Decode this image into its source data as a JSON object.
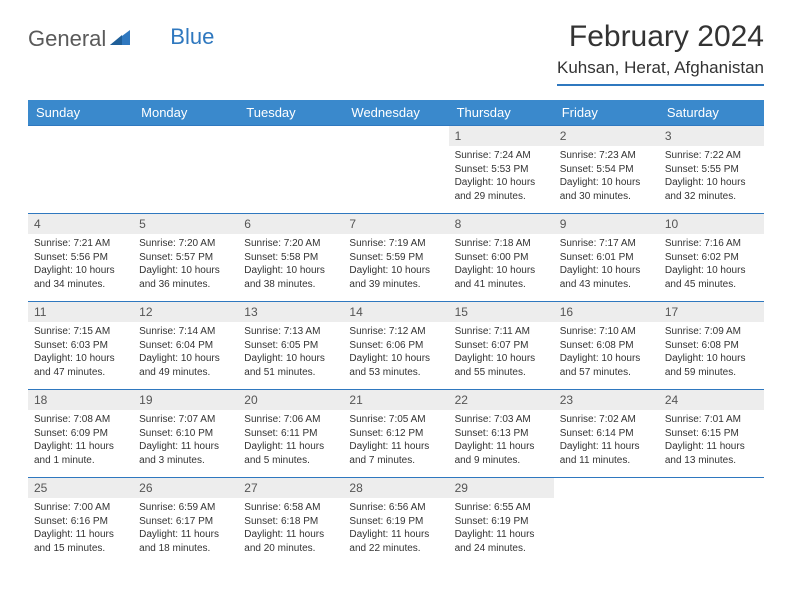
{
  "logo": {
    "word1": "General",
    "word2": "Blue"
  },
  "title": "February 2024",
  "location": "Kuhsan, Herat, Afghanistan",
  "colors": {
    "header_bg": "#3a89cc",
    "rule": "#2f78bf",
    "daynum_bg": "#ededed",
    "page_bg": "#ffffff",
    "text": "#333333"
  },
  "day_headers": [
    "Sunday",
    "Monday",
    "Tuesday",
    "Wednesday",
    "Thursday",
    "Friday",
    "Saturday"
  ],
  "weeks": [
    [
      {
        "n": "",
        "sunrise": "",
        "sunset": "",
        "daylight": ""
      },
      {
        "n": "",
        "sunrise": "",
        "sunset": "",
        "daylight": ""
      },
      {
        "n": "",
        "sunrise": "",
        "sunset": "",
        "daylight": ""
      },
      {
        "n": "",
        "sunrise": "",
        "sunset": "",
        "daylight": ""
      },
      {
        "n": "1",
        "sunrise": "Sunrise: 7:24 AM",
        "sunset": "Sunset: 5:53 PM",
        "daylight": "Daylight: 10 hours and 29 minutes."
      },
      {
        "n": "2",
        "sunrise": "Sunrise: 7:23 AM",
        "sunset": "Sunset: 5:54 PM",
        "daylight": "Daylight: 10 hours and 30 minutes."
      },
      {
        "n": "3",
        "sunrise": "Sunrise: 7:22 AM",
        "sunset": "Sunset: 5:55 PM",
        "daylight": "Daylight: 10 hours and 32 minutes."
      }
    ],
    [
      {
        "n": "4",
        "sunrise": "Sunrise: 7:21 AM",
        "sunset": "Sunset: 5:56 PM",
        "daylight": "Daylight: 10 hours and 34 minutes."
      },
      {
        "n": "5",
        "sunrise": "Sunrise: 7:20 AM",
        "sunset": "Sunset: 5:57 PM",
        "daylight": "Daylight: 10 hours and 36 minutes."
      },
      {
        "n": "6",
        "sunrise": "Sunrise: 7:20 AM",
        "sunset": "Sunset: 5:58 PM",
        "daylight": "Daylight: 10 hours and 38 minutes."
      },
      {
        "n": "7",
        "sunrise": "Sunrise: 7:19 AM",
        "sunset": "Sunset: 5:59 PM",
        "daylight": "Daylight: 10 hours and 39 minutes."
      },
      {
        "n": "8",
        "sunrise": "Sunrise: 7:18 AM",
        "sunset": "Sunset: 6:00 PM",
        "daylight": "Daylight: 10 hours and 41 minutes."
      },
      {
        "n": "9",
        "sunrise": "Sunrise: 7:17 AM",
        "sunset": "Sunset: 6:01 PM",
        "daylight": "Daylight: 10 hours and 43 minutes."
      },
      {
        "n": "10",
        "sunrise": "Sunrise: 7:16 AM",
        "sunset": "Sunset: 6:02 PM",
        "daylight": "Daylight: 10 hours and 45 minutes."
      }
    ],
    [
      {
        "n": "11",
        "sunrise": "Sunrise: 7:15 AM",
        "sunset": "Sunset: 6:03 PM",
        "daylight": "Daylight: 10 hours and 47 minutes."
      },
      {
        "n": "12",
        "sunrise": "Sunrise: 7:14 AM",
        "sunset": "Sunset: 6:04 PM",
        "daylight": "Daylight: 10 hours and 49 minutes."
      },
      {
        "n": "13",
        "sunrise": "Sunrise: 7:13 AM",
        "sunset": "Sunset: 6:05 PM",
        "daylight": "Daylight: 10 hours and 51 minutes."
      },
      {
        "n": "14",
        "sunrise": "Sunrise: 7:12 AM",
        "sunset": "Sunset: 6:06 PM",
        "daylight": "Daylight: 10 hours and 53 minutes."
      },
      {
        "n": "15",
        "sunrise": "Sunrise: 7:11 AM",
        "sunset": "Sunset: 6:07 PM",
        "daylight": "Daylight: 10 hours and 55 minutes."
      },
      {
        "n": "16",
        "sunrise": "Sunrise: 7:10 AM",
        "sunset": "Sunset: 6:08 PM",
        "daylight": "Daylight: 10 hours and 57 minutes."
      },
      {
        "n": "17",
        "sunrise": "Sunrise: 7:09 AM",
        "sunset": "Sunset: 6:08 PM",
        "daylight": "Daylight: 10 hours and 59 minutes."
      }
    ],
    [
      {
        "n": "18",
        "sunrise": "Sunrise: 7:08 AM",
        "sunset": "Sunset: 6:09 PM",
        "daylight": "Daylight: 11 hours and 1 minute."
      },
      {
        "n": "19",
        "sunrise": "Sunrise: 7:07 AM",
        "sunset": "Sunset: 6:10 PM",
        "daylight": "Daylight: 11 hours and 3 minutes."
      },
      {
        "n": "20",
        "sunrise": "Sunrise: 7:06 AM",
        "sunset": "Sunset: 6:11 PM",
        "daylight": "Daylight: 11 hours and 5 minutes."
      },
      {
        "n": "21",
        "sunrise": "Sunrise: 7:05 AM",
        "sunset": "Sunset: 6:12 PM",
        "daylight": "Daylight: 11 hours and 7 minutes."
      },
      {
        "n": "22",
        "sunrise": "Sunrise: 7:03 AM",
        "sunset": "Sunset: 6:13 PM",
        "daylight": "Daylight: 11 hours and 9 minutes."
      },
      {
        "n": "23",
        "sunrise": "Sunrise: 7:02 AM",
        "sunset": "Sunset: 6:14 PM",
        "daylight": "Daylight: 11 hours and 11 minutes."
      },
      {
        "n": "24",
        "sunrise": "Sunrise: 7:01 AM",
        "sunset": "Sunset: 6:15 PM",
        "daylight": "Daylight: 11 hours and 13 minutes."
      }
    ],
    [
      {
        "n": "25",
        "sunrise": "Sunrise: 7:00 AM",
        "sunset": "Sunset: 6:16 PM",
        "daylight": "Daylight: 11 hours and 15 minutes."
      },
      {
        "n": "26",
        "sunrise": "Sunrise: 6:59 AM",
        "sunset": "Sunset: 6:17 PM",
        "daylight": "Daylight: 11 hours and 18 minutes."
      },
      {
        "n": "27",
        "sunrise": "Sunrise: 6:58 AM",
        "sunset": "Sunset: 6:18 PM",
        "daylight": "Daylight: 11 hours and 20 minutes."
      },
      {
        "n": "28",
        "sunrise": "Sunrise: 6:56 AM",
        "sunset": "Sunset: 6:19 PM",
        "daylight": "Daylight: 11 hours and 22 minutes."
      },
      {
        "n": "29",
        "sunrise": "Sunrise: 6:55 AM",
        "sunset": "Sunset: 6:19 PM",
        "daylight": "Daylight: 11 hours and 24 minutes."
      },
      {
        "n": "",
        "sunrise": "",
        "sunset": "",
        "daylight": ""
      },
      {
        "n": "",
        "sunrise": "",
        "sunset": "",
        "daylight": ""
      }
    ]
  ]
}
